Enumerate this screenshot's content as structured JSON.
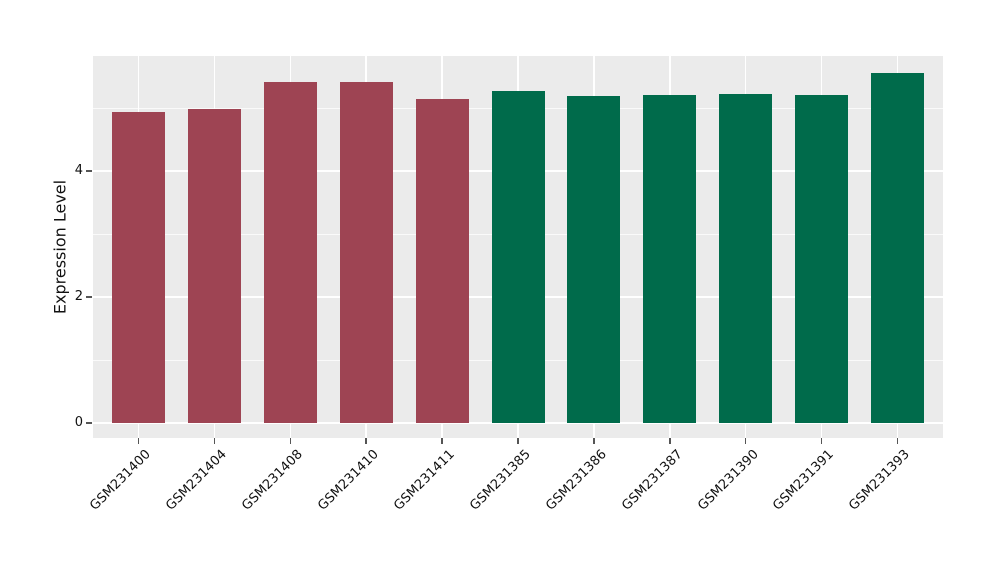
{
  "figure": {
    "background": "#FFFFFF"
  },
  "chart_data": {
    "type": "bar",
    "title": "",
    "xlabel": "",
    "ylabel": "Expression Level",
    "categories": [
      "GSM231400",
      "GSM231404",
      "GSM231408",
      "GSM231410",
      "GSM231411",
      "GSM231385",
      "GSM231386",
      "GSM231387",
      "GSM231390",
      "GSM231391",
      "GSM231393"
    ],
    "values": [
      4.94,
      4.98,
      5.42,
      5.42,
      5.14,
      5.27,
      5.19,
      5.21,
      5.22,
      5.21,
      5.55
    ],
    "bar_colors": [
      "#9E4453",
      "#9E4453",
      "#9E4453",
      "#9E4453",
      "#9E4453",
      "#006B4B",
      "#006B4B",
      "#006B4B",
      "#006B4B",
      "#006B4B",
      "#006B4B"
    ],
    "group_colors": {
      "maroon_group": "#9E4453",
      "green_group": "#006B4B"
    },
    "ytick_labels": [
      "0",
      "2",
      "4"
    ],
    "yticks": [
      0,
      2,
      4
    ],
    "yticks_minor": [
      1,
      3,
      5
    ],
    "ylim": [
      -0.26,
      5.81
    ],
    "grid": true,
    "legend": "none",
    "xtick_rotation_deg": 45,
    "panel_bg": "#EBEBEB",
    "grid_color": "#FFFFFF",
    "tick_color": "#555555",
    "text_color": "#111111"
  }
}
